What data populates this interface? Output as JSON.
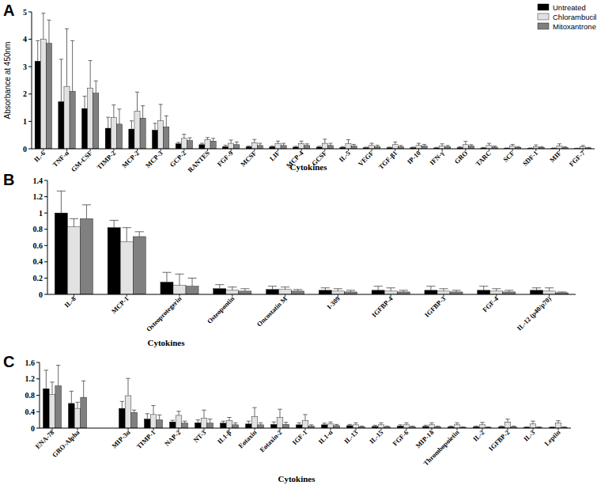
{
  "chart_data": [
    {
      "type": "bar",
      "title": "A",
      "x_label": "Cytokines",
      "y_label": "Absorbance at 450nm",
      "categories": [
        "IL-6",
        "TNF-α",
        "GM-CSF",
        "TIMP-2",
        "MCP-2",
        "MCP-3",
        "GCP-2",
        "RANTES",
        "FGF-9",
        "MCSF",
        "LIF",
        "MCP-4",
        "GCSF",
        "IL-5",
        "VEGF",
        "TGF-β1",
        "IP-10",
        "IFN-γ",
        "GRO",
        "TARC",
        "SCF",
        "SDF-1",
        "MIF",
        "FGF-7"
      ],
      "series": [
        {
          "name": "Untreated",
          "color": "#000000",
          "values": [
            3.2,
            1.72,
            1.47,
            0.75,
            0.72,
            0.68,
            0.18,
            0.15,
            0.08,
            0.07,
            0.07,
            0.06,
            0.06,
            0.05,
            0.04,
            0.04,
            0.04,
            0.03,
            0.04,
            0.03,
            0.02,
            0.02,
            0.02,
            0.01
          ],
          "errors": [
            0.75,
            1.55,
            0.45,
            0.4,
            0.3,
            0.25,
            0.05,
            0.05,
            0.05,
            0.03,
            0.03,
            0.03,
            0.03,
            0.03,
            0.02,
            0.02,
            0.02,
            0.02,
            0.03,
            0.02,
            0.01,
            0.01,
            0.01,
            0.01
          ]
        },
        {
          "name": "Chlorambucil",
          "color": "#e2e2e2",
          "values": [
            4.0,
            2.28,
            2.22,
            1.15,
            1.37,
            1.02,
            0.38,
            0.33,
            0.2,
            0.22,
            0.18,
            0.18,
            0.2,
            0.18,
            0.12,
            0.15,
            0.12,
            0.1,
            0.15,
            0.12,
            0.1,
            0.08,
            0.1,
            0.07
          ],
          "errors": [
            0.95,
            2.1,
            1.0,
            0.45,
            0.7,
            0.6,
            0.15,
            0.08,
            0.12,
            0.12,
            0.1,
            0.1,
            0.15,
            0.15,
            0.08,
            0.1,
            0.08,
            0.08,
            0.12,
            0.08,
            0.06,
            0.06,
            0.08,
            0.05
          ]
        },
        {
          "name": "Mitoxantrone",
          "color": "#808080",
          "values": [
            3.85,
            2.1,
            2.03,
            0.9,
            1.12,
            0.8,
            0.3,
            0.28,
            0.15,
            0.12,
            0.12,
            0.12,
            0.12,
            0.1,
            0.08,
            0.07,
            0.1,
            0.07,
            0.1,
            0.06,
            0.05,
            0.05,
            0.04,
            0.03
          ],
          "errors": [
            0.85,
            1.85,
            0.45,
            0.55,
            0.45,
            0.4,
            0.1,
            0.1,
            0.1,
            0.08,
            0.08,
            0.06,
            0.08,
            0.06,
            0.05,
            0.05,
            0.06,
            0.05,
            0.05,
            0.04,
            0.03,
            0.03,
            0.03,
            0.02
          ]
        }
      ],
      "ylim": [
        0,
        5
      ],
      "yticks": [
        0,
        1,
        2,
        3,
        4,
        5
      ],
      "grid": false,
      "legend": "top-right"
    },
    {
      "type": "bar",
      "title": "B",
      "x_label": "Cytokines",
      "categories": [
        "IL-8",
        "MCP-1",
        "Osteoprotegerin",
        "Osteopontin",
        "Oncostatin M",
        "I-309",
        "IGFBP-4",
        "IGFBP-3",
        "FGF-4",
        "IL-12 (p40/p70)"
      ],
      "series": [
        {
          "color": "#000000",
          "values": [
            1.0,
            0.82,
            0.15,
            0.07,
            0.06,
            0.05,
            0.05,
            0.05,
            0.05,
            0.05
          ],
          "errors": [
            0.27,
            0.09,
            0.12,
            0.05,
            0.04,
            0.03,
            0.05,
            0.05,
            0.05,
            0.03
          ]
        },
        {
          "color": "#e2e2e2",
          "values": [
            0.83,
            0.65,
            0.11,
            0.05,
            0.06,
            0.04,
            0.04,
            0.04,
            0.04,
            0.04
          ],
          "errors": [
            0.1,
            0.17,
            0.14,
            0.04,
            0.03,
            0.03,
            0.04,
            0.03,
            0.03,
            0.04
          ]
        },
        {
          "color": "#808080",
          "values": [
            0.93,
            0.71,
            0.1,
            0.04,
            0.04,
            0.03,
            0.03,
            0.03,
            0.03,
            0.02
          ],
          "errors": [
            0.17,
            0.06,
            0.1,
            0.03,
            0.02,
            0.02,
            0.02,
            0.02,
            0.02,
            0.01
          ]
        }
      ],
      "ylim": [
        0,
        1.4
      ],
      "yticks": [
        0,
        0.2,
        0.4,
        0.6,
        0.8,
        1,
        1.2,
        1.4
      ],
      "grid": false
    },
    {
      "type": "bar",
      "title": "C",
      "x_label": "Cytokines",
      "categories": [
        "ENA-78",
        "GRO-Alpha",
        null,
        "MIP-3α",
        "TIMP-1",
        "NAP-2",
        "NT-3",
        "IL1-β",
        "Eotaxin",
        "Eotaxin-2",
        "IGF-1",
        "IL1-α",
        "IL-13",
        "IL-15",
        "FGF-6",
        "MIP-1δ",
        "Thrombopoietin",
        "IL-2",
        "IGFBP-2",
        "IL-3",
        "Leptin"
      ],
      "series": [
        {
          "color": "#000000",
          "values": [
            0.96,
            0.6,
            null,
            0.48,
            0.22,
            0.15,
            0.13,
            0.12,
            0.1,
            0.09,
            0.08,
            0.08,
            0.06,
            0.04,
            0.05,
            0.04,
            0.03,
            0.03,
            0.03,
            0.02,
            0.02
          ],
          "errors": [
            0.45,
            0.3,
            null,
            0.17,
            0.13,
            0.04,
            0.07,
            0.05,
            0.07,
            0.06,
            0.05,
            0.04,
            0.03,
            0.03,
            0.03,
            0.03,
            0.02,
            0.02,
            0.02,
            0.01,
            0.01
          ]
        },
        {
          "color": "#e2e2e2",
          "values": [
            0.82,
            0.48,
            null,
            0.79,
            0.33,
            0.31,
            0.24,
            0.18,
            0.28,
            0.26,
            0.18,
            0.1,
            0.08,
            0.08,
            0.08,
            0.08,
            0.08,
            0.08,
            0.15,
            0.1,
            0.12
          ],
          "errors": [
            0.3,
            0.15,
            null,
            0.42,
            0.22,
            0.1,
            0.2,
            0.08,
            0.22,
            0.2,
            0.15,
            0.05,
            0.05,
            0.05,
            0.05,
            0.05,
            0.05,
            0.06,
            0.07,
            0.07,
            0.06
          ]
        },
        {
          "color": "#808080",
          "values": [
            1.03,
            0.75,
            null,
            0.38,
            0.2,
            0.12,
            0.12,
            0.08,
            0.08,
            0.09,
            0.05,
            0.06,
            0.03,
            0.03,
            0.03,
            0.03,
            0.02,
            0.02,
            0.03,
            0.02,
            0.02
          ],
          "errors": [
            0.5,
            0.4,
            null,
            0.06,
            0.12,
            0.05,
            0.1,
            0.05,
            0.05,
            0.05,
            0.03,
            0.03,
            0.02,
            0.02,
            0.02,
            0.02,
            0.01,
            0.01,
            0.02,
            0.01,
            0.01
          ]
        }
      ],
      "ylim": [
        0,
        1.6
      ],
      "yticks": [
        0,
        0.4,
        0.8,
        1.2,
        1.6
      ],
      "grid": false
    }
  ]
}
